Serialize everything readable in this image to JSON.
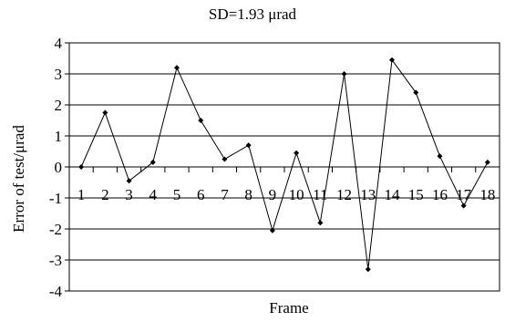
{
  "chart_data": {
    "type": "line",
    "title": "SD=1.93 μrad",
    "xlabel": "Frame",
    "ylabel": "Error of test/μrad",
    "categories": [
      "1",
      "2",
      "3",
      "4",
      "5",
      "6",
      "7",
      "8",
      "9",
      "10",
      "11",
      "12",
      "13",
      "14",
      "15",
      "16",
      "17",
      "18"
    ],
    "series": [
      {
        "values": [
          0.0,
          1.75,
          -0.45,
          0.15,
          3.2,
          1.5,
          0.25,
          0.7,
          -2.05,
          0.45,
          -1.8,
          3.0,
          -3.3,
          3.45,
          2.4,
          0.35,
          -1.25,
          0.15
        ]
      }
    ],
    "ylim": [
      -4,
      4
    ],
    "yticks": [
      "-4",
      "-3",
      "-2",
      "-1",
      "0",
      "1",
      "2",
      "3",
      "4"
    ],
    "grid": true,
    "x_tick_labels_position": "on zero line",
    "colors": {
      "line": "#000000",
      "grid": "#000000"
    }
  }
}
